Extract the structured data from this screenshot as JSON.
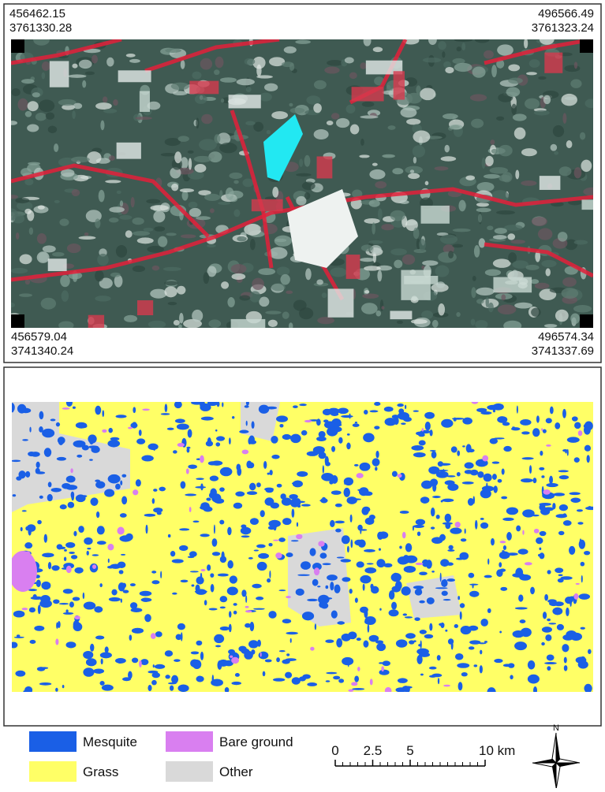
{
  "top_panel": {
    "corners": {
      "top_left": {
        "x": 456462.15,
        "y": 3761330.28
      },
      "top_right": {
        "x": 496566.49,
        "y": 3761323.24
      },
      "bottom_left": {
        "x": 456579.04,
        "y": 3741340.24
      },
      "bottom_right": {
        "x": 496574.34,
        "y": 3741337.69
      }
    }
  },
  "legend": {
    "items": [
      {
        "label": "Mesquite",
        "color": "#1a5fe6"
      },
      {
        "label": "Grass",
        "color": "#ffff66"
      },
      {
        "label": "Bare ground",
        "color": "#d97ff0"
      },
      {
        "label": "Other",
        "color": "#d9d9d9"
      }
    ]
  },
  "scale_bar": {
    "ticks": [
      0,
      2.5,
      5,
      {
        "value": 10,
        "label": "10 km"
      }
    ]
  },
  "north_arrow": {
    "label": "N"
  }
}
